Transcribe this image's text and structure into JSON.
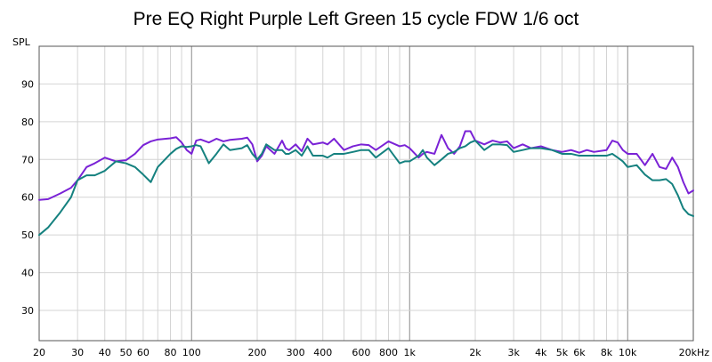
{
  "chart_data": {
    "type": "line",
    "title": "Pre EQ Right Purple Left Green 15 cycle FDW 1/6 oct",
    "ylabel": "SPL",
    "xlabel": "",
    "x_scale": "log",
    "xlim": [
      20,
      20000
    ],
    "ylim": [
      22,
      100
    ],
    "grid": true,
    "x_ticks": [
      20,
      30,
      40,
      50,
      60,
      80,
      100,
      200,
      300,
      400,
      600,
      800,
      1000,
      2000,
      3000,
      4000,
      5000,
      6000,
      8000,
      10000,
      20000
    ],
    "x_tick_labels": [
      "20",
      "30",
      "40",
      "50",
      "60",
      "80",
      "100",
      "200",
      "300",
      "400",
      "600",
      "800",
      "1k",
      "2k",
      "3k",
      "4k",
      "5k",
      "6k",
      "8k",
      "10k",
      "20kHz"
    ],
    "y_ticks": [
      30,
      40,
      50,
      60,
      70,
      80,
      90
    ],
    "y_tick_labels": [
      "30",
      "40",
      "50",
      "60",
      "70",
      "80",
      "90"
    ],
    "series": [
      {
        "color": "#7a22d6",
        "x": [
          20,
          22,
          25,
          28,
          30,
          33,
          36,
          40,
          45,
          50,
          55,
          60,
          65,
          70,
          80,
          85,
          90,
          95,
          100,
          105,
          110,
          120,
          130,
          140,
          150,
          170,
          180,
          190,
          200,
          210,
          220,
          240,
          260,
          270,
          280,
          300,
          320,
          340,
          360,
          400,
          420,
          450,
          500,
          550,
          600,
          650,
          700,
          800,
          900,
          950,
          1000,
          1100,
          1150,
          1200,
          1300,
          1400,
          1500,
          1600,
          1700,
          1800,
          1900,
          2000,
          2200,
          2400,
          2600,
          2800,
          3000,
          3300,
          3600,
          4000,
          4500,
          5000,
          5500,
          6000,
          6500,
          7000,
          8000,
          8500,
          9000,
          9500,
          10000,
          11000,
          12000,
          13000,
          14000,
          15000,
          16000,
          17000,
          18000,
          19000,
          20000
        ],
        "values": [
          59.3,
          59.5,
          61,
          62.5,
          64.5,
          68,
          69,
          70.5,
          69.5,
          69.8,
          71.5,
          73.8,
          74.8,
          75.3,
          75.6,
          75.9,
          74.5,
          72.5,
          71.5,
          75,
          75.3,
          74.5,
          75.5,
          74.8,
          75.2,
          75.5,
          75.8,
          74,
          69.5,
          71,
          73.5,
          71.5,
          75,
          73,
          72.5,
          74,
          72.2,
          75.5,
          74,
          74.5,
          74,
          75.5,
          72.5,
          73.5,
          74,
          73.8,
          72.5,
          74.8,
          73.5,
          73.8,
          73,
          70.5,
          71.5,
          72,
          71.5,
          76.5,
          73,
          71.5,
          73.5,
          77.5,
          77.5,
          75,
          74,
          75,
          74.5,
          74.8,
          73,
          74,
          73,
          73.5,
          72.5,
          72,
          72.5,
          71.8,
          72.5,
          72,
          72.5,
          75,
          74.5,
          72.5,
          71.5,
          71.5,
          68.5,
          71.5,
          68,
          67.5,
          70.5,
          68,
          64,
          61,
          61.8
        ]
      },
      {
        "color": "#15817f",
        "x": [
          20,
          22,
          25,
          28,
          30,
          33,
          36,
          40,
          45,
          50,
          55,
          60,
          65,
          70,
          80,
          85,
          90,
          95,
          100,
          105,
          110,
          120,
          130,
          140,
          150,
          170,
          180,
          190,
          200,
          210,
          220,
          240,
          260,
          270,
          280,
          300,
          320,
          340,
          360,
          400,
          420,
          450,
          500,
          550,
          600,
          650,
          700,
          800,
          900,
          950,
          1000,
          1100,
          1150,
          1200,
          1300,
          1400,
          1500,
          1600,
          1700,
          1800,
          1900,
          2000,
          2200,
          2400,
          2600,
          2800,
          3000,
          3300,
          3600,
          4000,
          4500,
          5000,
          5500,
          6000,
          6500,
          7000,
          8000,
          8500,
          9000,
          9500,
          10000,
          11000,
          12000,
          13000,
          14000,
          15000,
          16000,
          17000,
          18000,
          19000,
          20000
        ],
        "values": [
          50,
          52,
          56,
          60,
          64.5,
          65.8,
          65.8,
          67,
          69.5,
          69,
          68,
          66,
          64,
          68,
          71.5,
          72.8,
          73.5,
          73.3,
          73.5,
          73.8,
          73.5,
          69,
          71.5,
          74,
          72.5,
          73,
          73.8,
          71.5,
          70,
          71.5,
          74,
          72.5,
          72.5,
          71.5,
          71.5,
          72.5,
          71,
          73.5,
          71,
          71,
          70.5,
          71.5,
          71.5,
          72,
          72.5,
          72.5,
          70.5,
          73,
          69,
          69.5,
          69.5,
          71,
          72.5,
          70.5,
          68.5,
          70,
          71.5,
          72,
          73,
          73.5,
          74.5,
          75,
          72.5,
          74,
          74,
          73.8,
          72,
          72.5,
          73,
          73,
          72.5,
          71.5,
          71.5,
          71,
          71,
          71,
          71,
          71.5,
          70.5,
          69.5,
          68,
          68.5,
          66,
          64.5,
          64.5,
          64.8,
          63.5,
          60.5,
          57,
          55.5,
          55
        ]
      }
    ]
  }
}
